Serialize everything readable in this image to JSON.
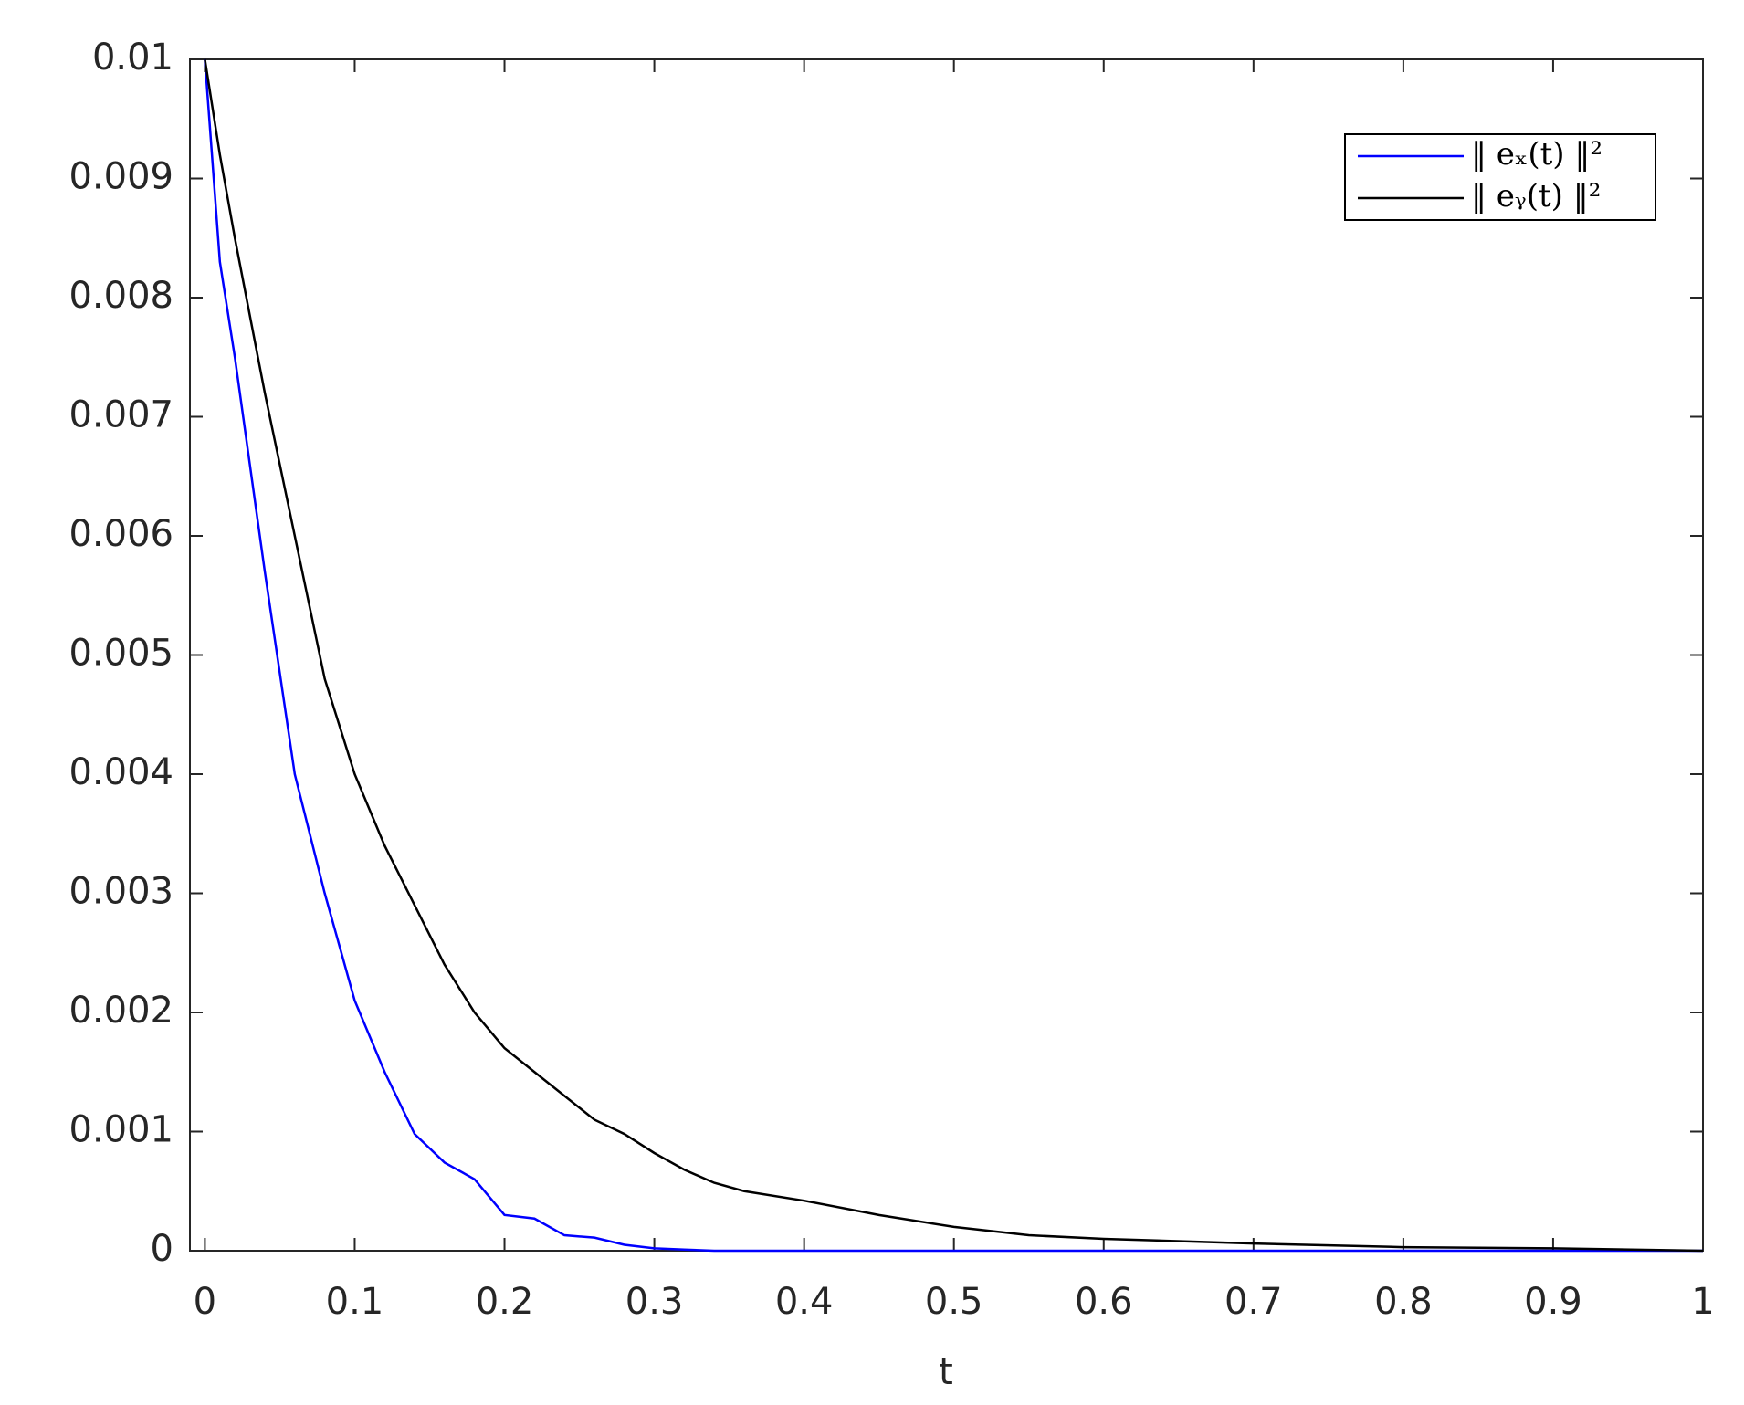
{
  "chart_data": {
    "type": "line",
    "x_label": "t",
    "x": [
      0,
      0.01,
      0.02,
      0.04,
      0.06,
      0.08,
      0.1,
      0.12,
      0.14,
      0.16,
      0.18,
      0.2,
      0.22,
      0.24,
      0.26,
      0.28,
      0.3,
      0.32,
      0.34,
      0.36,
      0.4,
      0.45,
      0.5,
      0.55,
      0.6,
      0.7,
      0.8,
      0.9,
      1
    ],
    "series": [
      {
        "name": "‖ eₓ(t) ‖²",
        "color": "#0000ff",
        "values": [
          0.01,
          0.0083,
          0.0075,
          0.0057,
          0.004,
          0.003,
          0.0021,
          0.0015,
          0.00098,
          0.00074,
          0.0006,
          0.0003,
          0.00027,
          0.00013,
          0.00011,
          5e-05,
          2e-05,
          1e-05,
          0,
          0,
          0,
          0,
          0,
          0,
          0,
          0,
          0,
          0,
          0
        ]
      },
      {
        "name": "‖ eᵧ(t) ‖²",
        "color": "#000000",
        "values": [
          0.01,
          0.0092,
          0.0085,
          0.0072,
          0.006,
          0.0048,
          0.004,
          0.0034,
          0.0029,
          0.0024,
          0.002,
          0.0017,
          0.0015,
          0.0013,
          0.0011,
          0.00098,
          0.00082,
          0.00068,
          0.00057,
          0.0005,
          0.00042,
          0.0003,
          0.0002,
          0.00013,
          0.0001,
          6e-05,
          3e-05,
          2e-05,
          0
        ]
      }
    ],
    "xlim": [
      -0.01,
      1
    ],
    "ylim": [
      0,
      0.01
    ],
    "xticks": [
      0,
      0.1,
      0.2,
      0.3,
      0.4,
      0.5,
      0.6,
      0.7,
      0.8,
      0.9,
      1
    ],
    "yticks": [
      0,
      0.001,
      0.002,
      0.003,
      0.004,
      0.005,
      0.006,
      0.007,
      0.008,
      0.009,
      0.01
    ],
    "legend": "upper right",
    "grid": false
  }
}
